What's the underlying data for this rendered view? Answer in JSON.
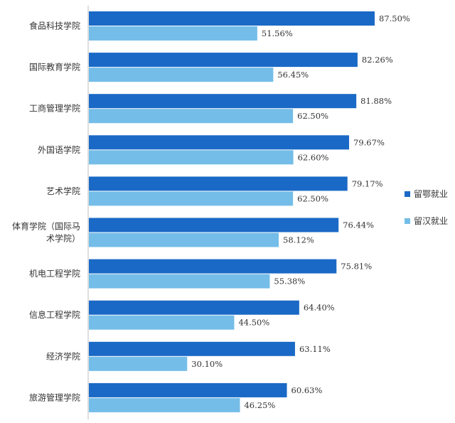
{
  "chart_data": {
    "type": "bar",
    "orientation": "horizontal",
    "categories": [
      [
        "食品科技学院"
      ],
      [
        "国际教育学院"
      ],
      [
        "工商管理学院"
      ],
      [
        "外国语学院"
      ],
      [
        "艺术学院"
      ],
      [
        "体育学院（国际马",
        "术学院）"
      ],
      [
        "机电工程学院"
      ],
      [
        "信息工程学院"
      ],
      [
        "经济学院"
      ],
      [
        "旅游管理学院"
      ]
    ],
    "series": [
      {
        "name": "留鄂就业",
        "color": "#1a69c6",
        "values": [
          87.5,
          82.26,
          81.88,
          79.67,
          79.17,
          76.44,
          75.81,
          64.4,
          63.11,
          60.63
        ],
        "labels": [
          "87.50%",
          "82.26%",
          "81.88%",
          "79.67%",
          "79.17%",
          "76.44%",
          "75.81%",
          "64.40%",
          "63.11%",
          "60.63%"
        ]
      },
      {
        "name": "留汉就业",
        "color": "#74bde8",
        "values": [
          51.56,
          56.45,
          62.5,
          62.6,
          62.5,
          58.12,
          55.38,
          44.5,
          30.1,
          46.25
        ],
        "labels": [
          "51.56%",
          "56.45%",
          "62.50%",
          "62.60%",
          "62.50%",
          "58.12%",
          "55.38%",
          "44.50%",
          "30.10%",
          "46.25%"
        ]
      }
    ],
    "xlim": [
      0,
      100
    ],
    "grid": false,
    "legend_position": "right"
  }
}
